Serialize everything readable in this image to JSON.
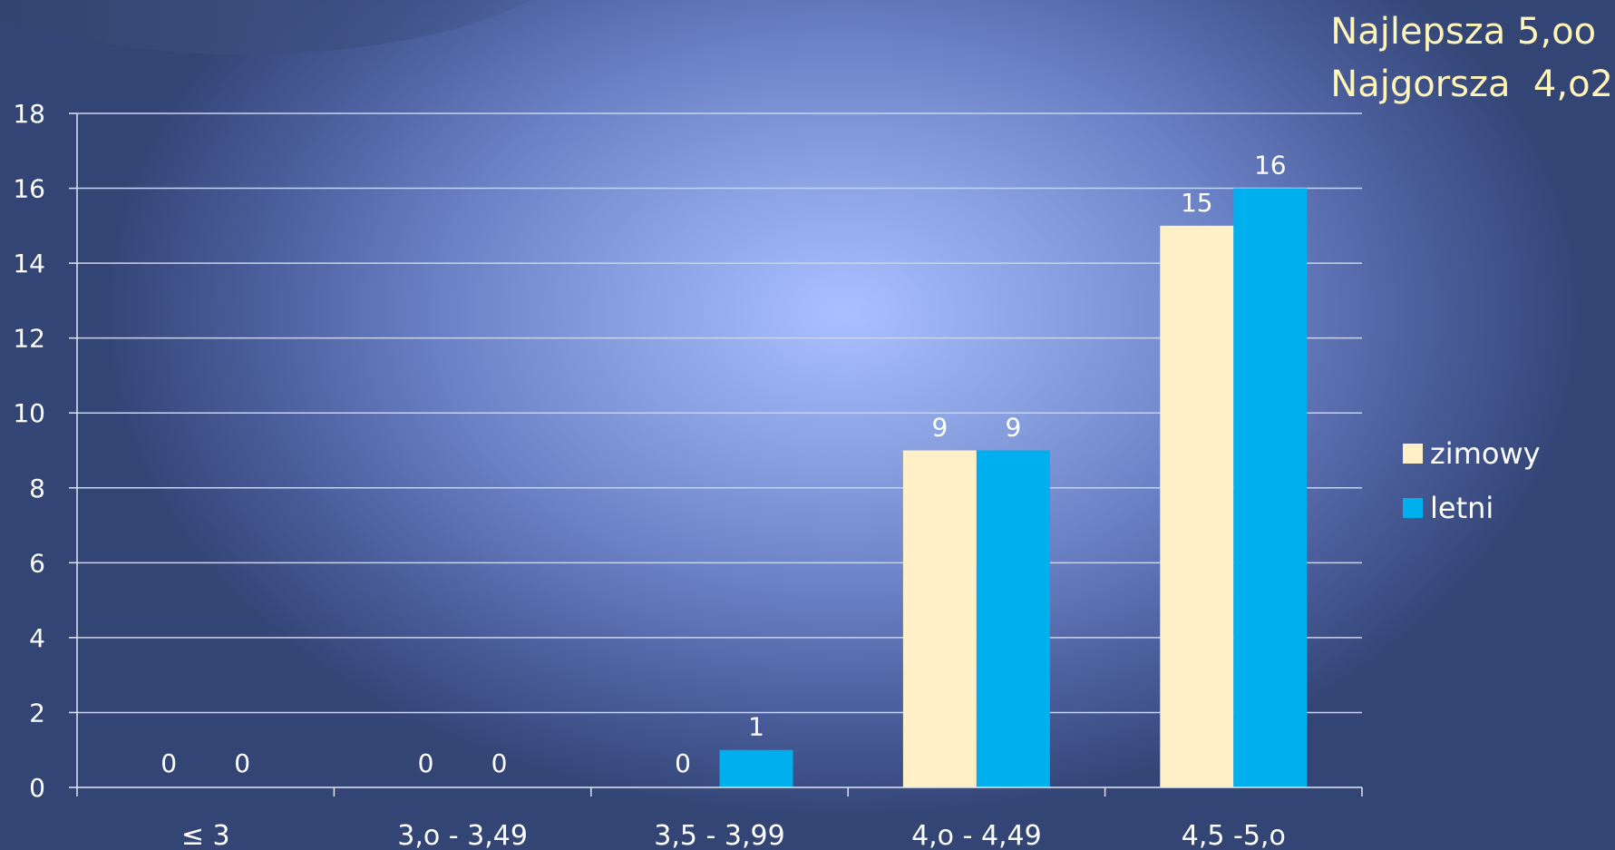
{
  "annotation": {
    "line1": "Najlepsza 5,oo",
    "line2": "Najgorsza  4,o2"
  },
  "chart_data": {
    "type": "bar",
    "categories": [
      "≤ 3",
      "3,o - 3,49",
      "3,5 - 3,99",
      "4,o - 4,49",
      "4,5 -5,o"
    ],
    "series": [
      {
        "name": "zimowy",
        "values": [
          0,
          0,
          0,
          9,
          15
        ],
        "color": "#fff0c8"
      },
      {
        "name": "letni",
        "values": [
          0,
          0,
          1,
          9,
          16
        ],
        "color": "#00b0ee"
      }
    ],
    "ylim": [
      0,
      18
    ],
    "yticks": [
      0,
      2,
      4,
      6,
      8,
      10,
      12,
      14,
      16,
      18
    ],
    "grid": true,
    "legend_position": "right",
    "data_labels": true
  }
}
